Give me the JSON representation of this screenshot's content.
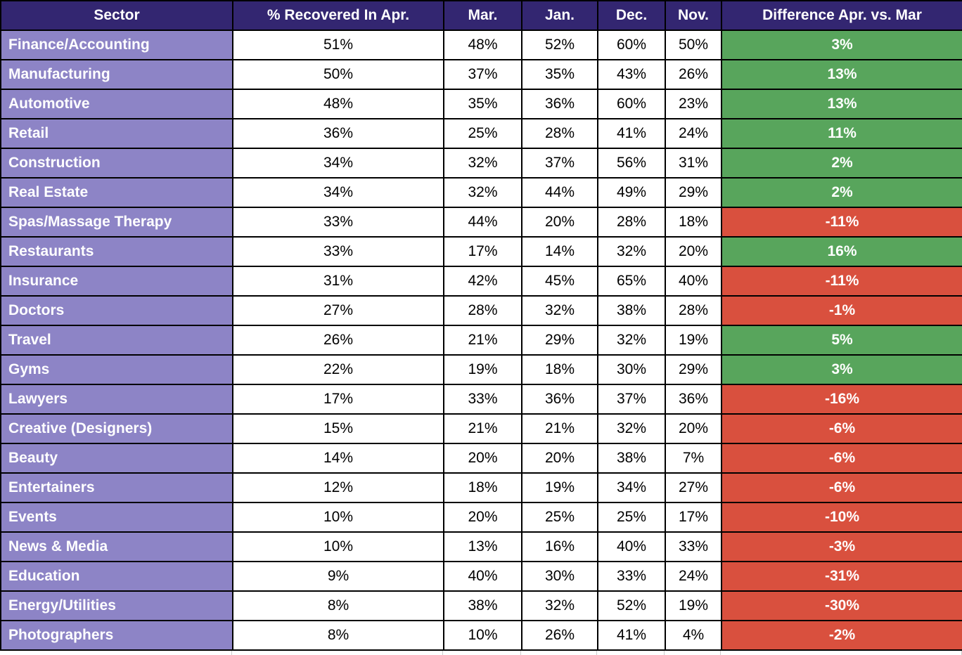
{
  "chart_data": {
    "type": "table",
    "columns": [
      "Sector",
      "% Recovered In Apr.",
      "Mar.",
      "Jan.",
      "Dec.",
      "Nov.",
      "Difference Apr. vs. Mar"
    ],
    "rows": [
      {
        "sector": "Finance/Accounting",
        "apr": 51,
        "mar": 48,
        "jan": 52,
        "dec": 60,
        "nov": 50,
        "diff": 3
      },
      {
        "sector": "Manufacturing",
        "apr": 50,
        "mar": 37,
        "jan": 35,
        "dec": 43,
        "nov": 26,
        "diff": 13
      },
      {
        "sector": "Automotive",
        "apr": 48,
        "mar": 35,
        "jan": 36,
        "dec": 60,
        "nov": 23,
        "diff": 13
      },
      {
        "sector": "Retail",
        "apr": 36,
        "mar": 25,
        "jan": 28,
        "dec": 41,
        "nov": 24,
        "diff": 11
      },
      {
        "sector": "Construction",
        "apr": 34,
        "mar": 32,
        "jan": 37,
        "dec": 56,
        "nov": 31,
        "diff": 2
      },
      {
        "sector": "Real Estate",
        "apr": 34,
        "mar": 32,
        "jan": 44,
        "dec": 49,
        "nov": 29,
        "diff": 2
      },
      {
        "sector": "Spas/Massage Therapy",
        "apr": 33,
        "mar": 44,
        "jan": 20,
        "dec": 28,
        "nov": 18,
        "diff": -11
      },
      {
        "sector": "Restaurants",
        "apr": 33,
        "mar": 17,
        "jan": 14,
        "dec": 32,
        "nov": 20,
        "diff": 16
      },
      {
        "sector": "Insurance",
        "apr": 31,
        "mar": 42,
        "jan": 45,
        "dec": 65,
        "nov": 40,
        "diff": -11
      },
      {
        "sector": "Doctors",
        "apr": 27,
        "mar": 28,
        "jan": 32,
        "dec": 38,
        "nov": 28,
        "diff": -1
      },
      {
        "sector": "Travel",
        "apr": 26,
        "mar": 21,
        "jan": 29,
        "dec": 32,
        "nov": 19,
        "diff": 5
      },
      {
        "sector": "Gyms",
        "apr": 22,
        "mar": 19,
        "jan": 18,
        "dec": 30,
        "nov": 29,
        "diff": 3
      },
      {
        "sector": "Lawyers",
        "apr": 17,
        "mar": 33,
        "jan": 36,
        "dec": 37,
        "nov": 36,
        "diff": -16
      },
      {
        "sector": "Creative (Designers)",
        "apr": 15,
        "mar": 21,
        "jan": 21,
        "dec": 32,
        "nov": 20,
        "diff": -6
      },
      {
        "sector": "Beauty",
        "apr": 14,
        "mar": 20,
        "jan": 20,
        "dec": 38,
        "nov": 7,
        "diff": -6
      },
      {
        "sector": "Entertainers",
        "apr": 12,
        "mar": 18,
        "jan": 19,
        "dec": 34,
        "nov": 27,
        "diff": -6
      },
      {
        "sector": "Events",
        "apr": 10,
        "mar": 20,
        "jan": 25,
        "dec": 25,
        "nov": 17,
        "diff": -10
      },
      {
        "sector": "News & Media",
        "apr": 10,
        "mar": 13,
        "jan": 16,
        "dec": 40,
        "nov": 33,
        "diff": -3
      },
      {
        "sector": "Education",
        "apr": 9,
        "mar": 40,
        "jan": 30,
        "dec": 33,
        "nov": 24,
        "diff": -31
      },
      {
        "sector": "Energy/Utilities",
        "apr": 8,
        "mar": 38,
        "jan": 32,
        "dec": 52,
        "nov": 19,
        "diff": -30
      },
      {
        "sector": "Photographers",
        "apr": 8,
        "mar": 10,
        "jan": 26,
        "dec": 41,
        "nov": 4,
        "diff": -2
      }
    ],
    "value_format": "percent",
    "layout": {
      "legend": "none",
      "grid": "black-cell-borders"
    },
    "colors": {
      "header_bg": "#332671",
      "header_text": "#ffffff",
      "sector_bg": "#8d84c6",
      "sector_text": "#ffffff",
      "cell_bg": "#ffffff",
      "cell_text": "#000000",
      "diff_positive_bg": "#58a55c",
      "diff_negative_bg": "#d9503e",
      "diff_text": "#ffffff",
      "border": "#000000",
      "gridline": "#cccccc"
    }
  }
}
